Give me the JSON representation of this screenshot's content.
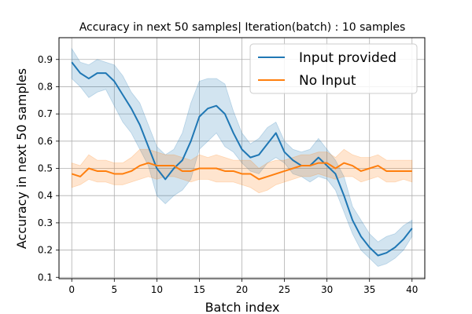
{
  "chart_data": {
    "type": "line",
    "title": "Accuracy in next 50 samples| Iteration(batch) : 10 samples",
    "xlabel": "Batch index",
    "ylabel": "Accuracy in next 50 samples",
    "xlim": [
      -1.5,
      41.5
    ],
    "ylim": [
      0.095,
      0.98
    ],
    "xticks": [
      0,
      5,
      10,
      15,
      20,
      25,
      30,
      35,
      40
    ],
    "yticks": [
      0.1,
      0.2,
      0.3,
      0.4,
      0.5,
      0.6,
      0.7,
      0.8,
      0.9
    ],
    "grid": true,
    "legend_position": "top-right",
    "x": [
      0,
      1,
      2,
      3,
      4,
      5,
      6,
      7,
      8,
      9,
      10,
      11,
      12,
      13,
      14,
      15,
      16,
      17,
      18,
      19,
      20,
      21,
      22,
      23,
      24,
      25,
      26,
      27,
      28,
      29,
      30,
      31,
      32,
      33,
      34,
      35,
      36,
      37,
      38,
      39,
      40
    ],
    "series": [
      {
        "name": "Input provided",
        "color": "#1f77b4",
        "values": [
          0.89,
          0.85,
          0.83,
          0.85,
          0.85,
          0.82,
          0.77,
          0.72,
          0.66,
          0.58,
          0.5,
          0.46,
          0.5,
          0.53,
          0.6,
          0.69,
          0.72,
          0.73,
          0.7,
          0.63,
          0.57,
          0.54,
          0.55,
          0.59,
          0.63,
          0.56,
          0.53,
          0.51,
          0.51,
          0.54,
          0.51,
          0.48,
          0.4,
          0.31,
          0.25,
          0.21,
          0.18,
          0.19,
          0.21,
          0.24,
          0.28
        ],
        "lower": [
          0.83,
          0.8,
          0.76,
          0.78,
          0.79,
          0.73,
          0.67,
          0.63,
          0.57,
          0.51,
          0.4,
          0.37,
          0.4,
          0.42,
          0.46,
          0.57,
          0.6,
          0.63,
          0.58,
          0.56,
          0.52,
          0.49,
          0.48,
          0.52,
          0.54,
          0.52,
          0.48,
          0.47,
          0.45,
          0.47,
          0.46,
          0.42,
          0.34,
          0.26,
          0.2,
          0.17,
          0.14,
          0.15,
          0.17,
          0.2,
          0.25
        ],
        "upper": [
          0.94,
          0.89,
          0.88,
          0.9,
          0.89,
          0.88,
          0.84,
          0.78,
          0.74,
          0.66,
          0.58,
          0.55,
          0.57,
          0.63,
          0.74,
          0.82,
          0.83,
          0.83,
          0.81,
          0.71,
          0.63,
          0.59,
          0.61,
          0.65,
          0.67,
          0.6,
          0.57,
          0.56,
          0.57,
          0.61,
          0.57,
          0.53,
          0.47,
          0.36,
          0.31,
          0.26,
          0.23,
          0.25,
          0.26,
          0.29,
          0.31
        ]
      },
      {
        "name": "No Input",
        "color": "#ff7f0e",
        "values": [
          0.48,
          0.47,
          0.5,
          0.49,
          0.49,
          0.48,
          0.48,
          0.49,
          0.51,
          0.52,
          0.51,
          0.51,
          0.51,
          0.49,
          0.49,
          0.5,
          0.5,
          0.5,
          0.49,
          0.49,
          0.48,
          0.48,
          0.46,
          0.47,
          0.48,
          0.49,
          0.5,
          0.51,
          0.51,
          0.52,
          0.52,
          0.5,
          0.52,
          0.51,
          0.49,
          0.5,
          0.51,
          0.49,
          0.49,
          0.49,
          0.49
        ],
        "lower": [
          0.43,
          0.44,
          0.46,
          0.45,
          0.45,
          0.44,
          0.44,
          0.45,
          0.46,
          0.47,
          0.46,
          0.47,
          0.47,
          0.46,
          0.45,
          0.46,
          0.46,
          0.45,
          0.45,
          0.45,
          0.44,
          0.43,
          0.41,
          0.42,
          0.44,
          0.45,
          0.46,
          0.47,
          0.47,
          0.48,
          0.47,
          0.46,
          0.47,
          0.47,
          0.45,
          0.46,
          0.47,
          0.45,
          0.45,
          0.46,
          0.45
        ],
        "upper": [
          0.52,
          0.51,
          0.55,
          0.53,
          0.53,
          0.52,
          0.52,
          0.54,
          0.57,
          0.57,
          0.56,
          0.55,
          0.55,
          0.54,
          0.53,
          0.55,
          0.54,
          0.55,
          0.54,
          0.53,
          0.53,
          0.53,
          0.5,
          0.52,
          0.53,
          0.53,
          0.54,
          0.55,
          0.55,
          0.56,
          0.56,
          0.54,
          0.57,
          0.55,
          0.54,
          0.54,
          0.55,
          0.53,
          0.53,
          0.53,
          0.53
        ]
      }
    ]
  }
}
